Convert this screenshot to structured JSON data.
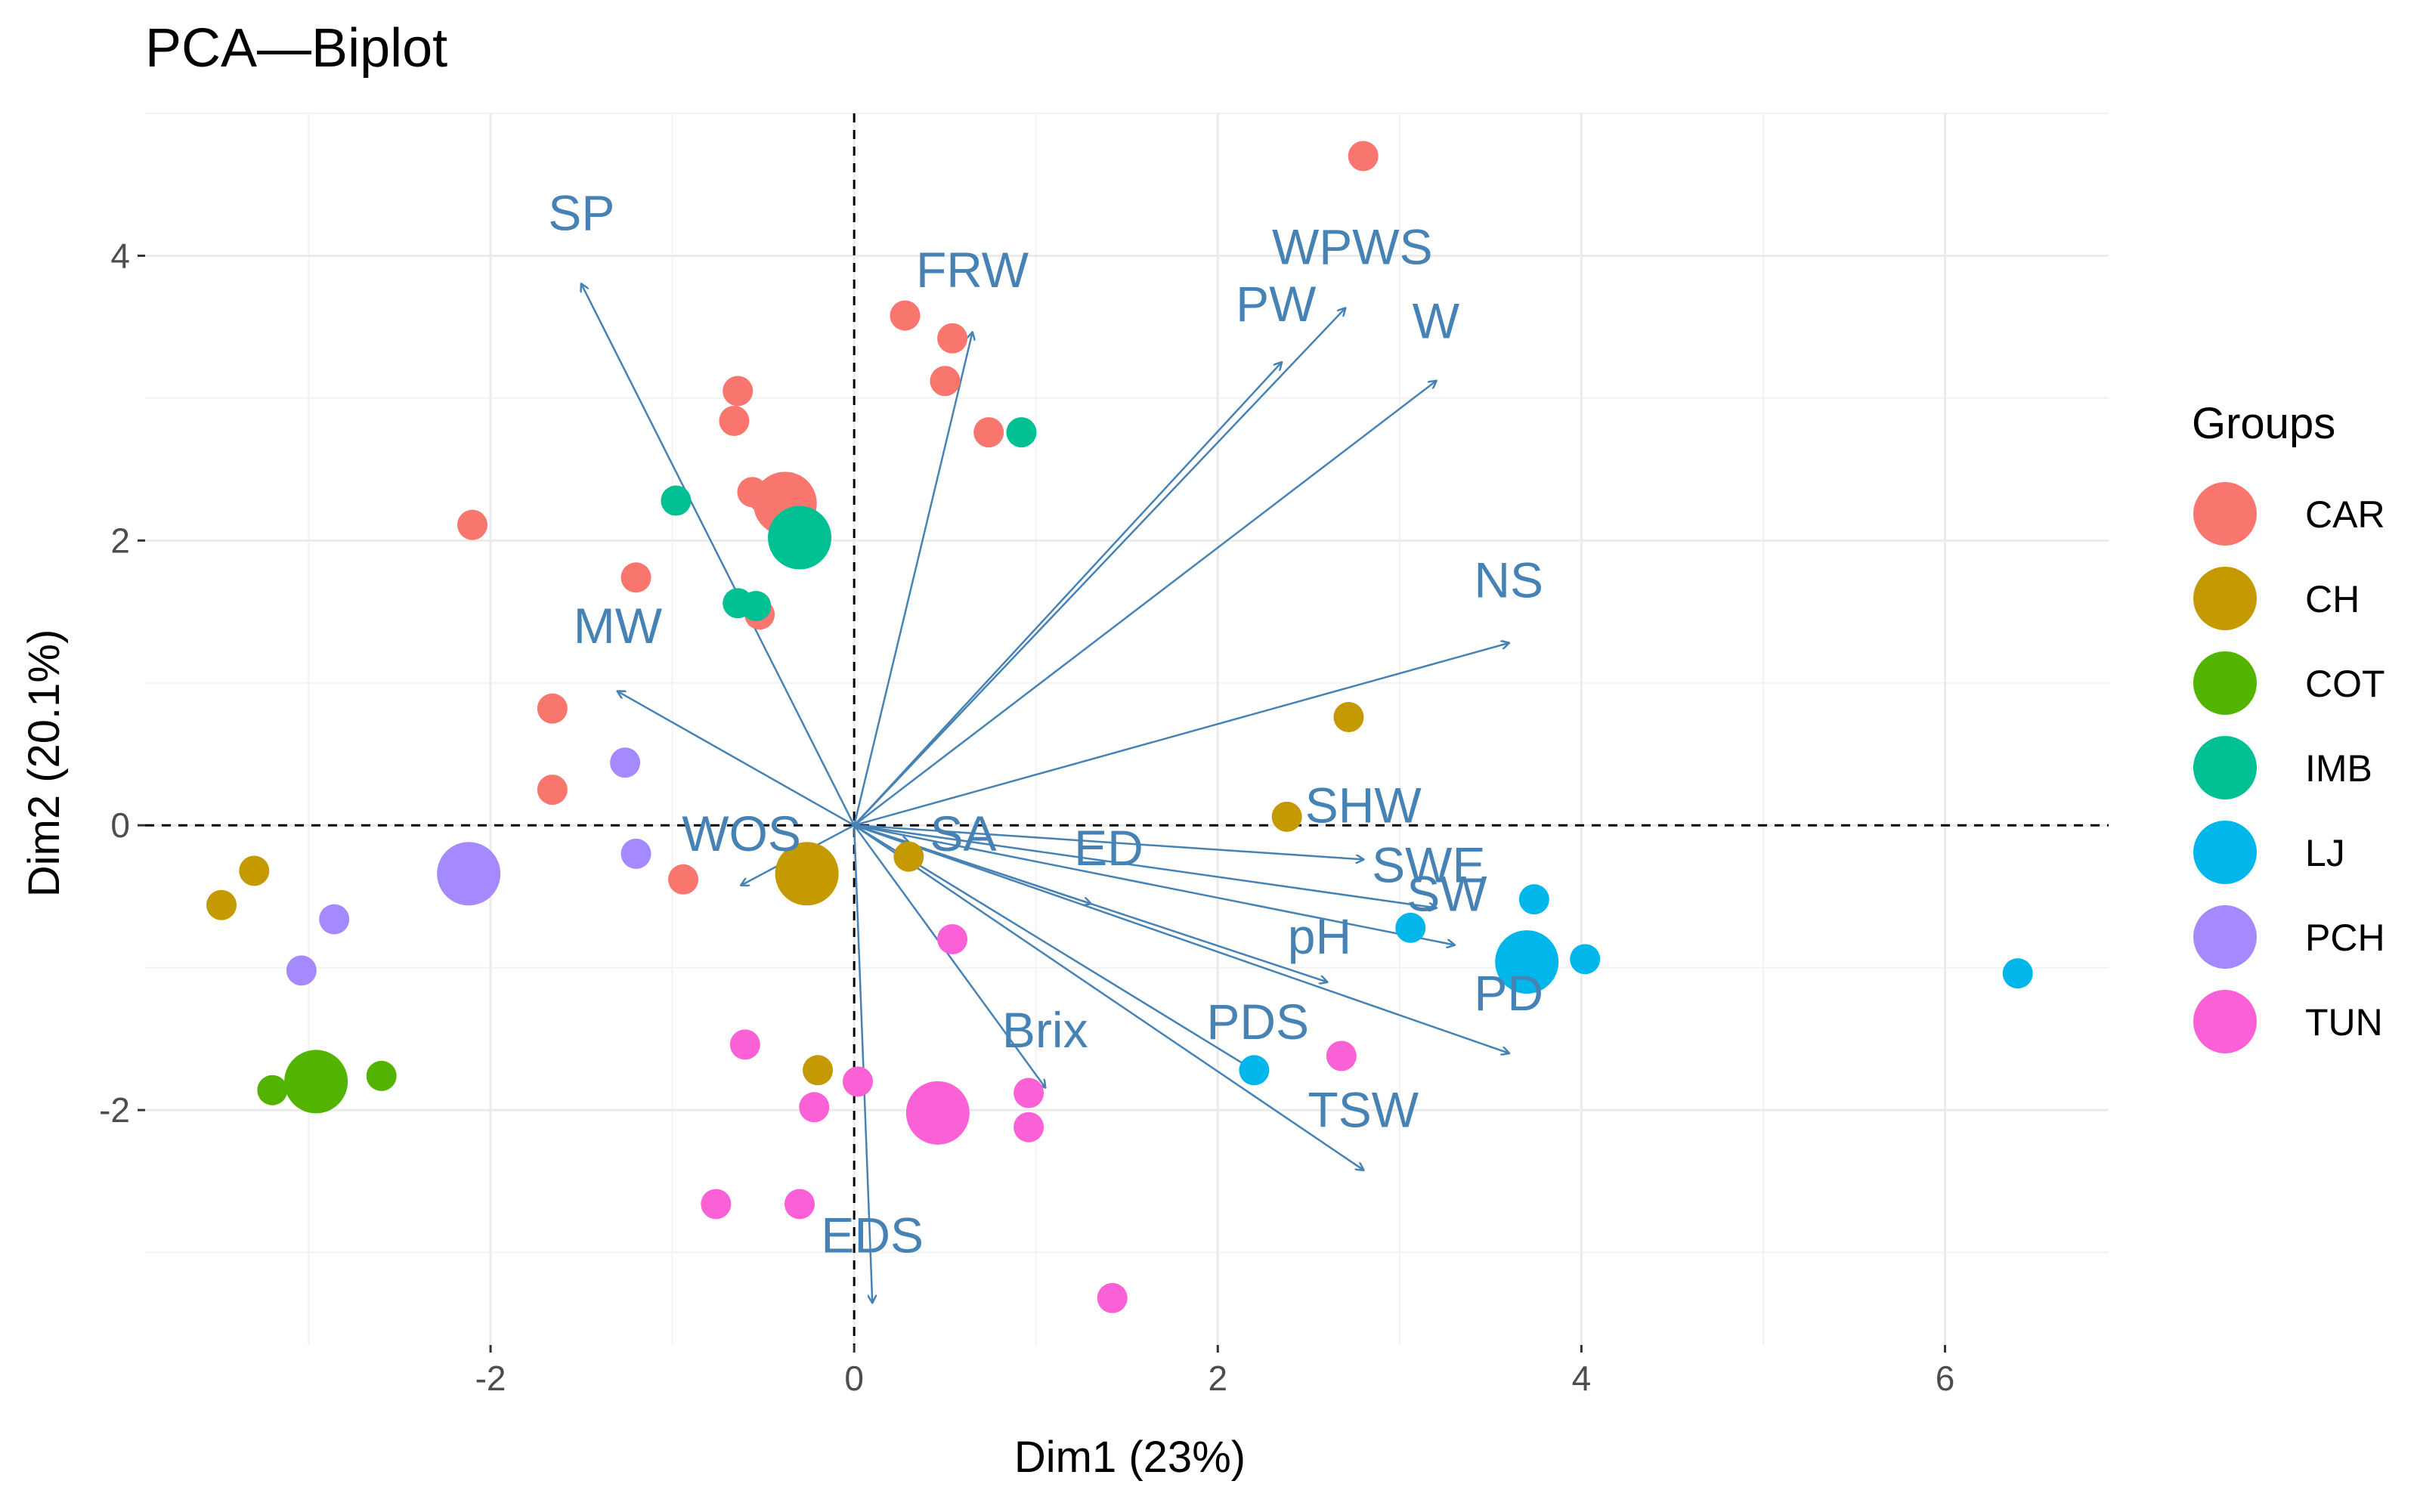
{
  "chart_data": {
    "type": "scatter",
    "title": "PCA—Biplot",
    "xlabel": "Dim1 (23%)",
    "ylabel": "Dim2 (20.1%)",
    "xlim": [
      -3.9,
      6.9
    ],
    "ylim": [
      -3.65,
      5.0
    ],
    "x_ticks": [
      -2,
      0,
      2,
      4,
      6
    ],
    "y_ticks": [
      -2,
      0,
      2,
      4
    ],
    "x_tick_labels": [
      "-2",
      "0",
      "2",
      "4",
      "6"
    ],
    "y_tick_labels": [
      "-2",
      "0",
      "2",
      "4"
    ],
    "grid": true,
    "legend": {
      "title": "Groups",
      "position": "right",
      "items": [
        {
          "name": "CAR",
          "color": "#F8766D"
        },
        {
          "name": "CH",
          "color": "#C49A00"
        },
        {
          "name": "COT",
          "color": "#53B400"
        },
        {
          "name": "IMB",
          "color": "#00C094"
        },
        {
          "name": "LJ",
          "color": "#00B6EB"
        },
        {
          "name": "PCH",
          "color": "#A58AFF"
        },
        {
          "name": "TUN",
          "color": "#FB61D7"
        }
      ]
    },
    "arrow_color": "#4682B4",
    "series": [
      {
        "name": "CAR",
        "color": "#F8766D",
        "points": [
          [
            2.8,
            4.7
          ],
          [
            0.28,
            3.58
          ],
          [
            0.54,
            3.42
          ],
          [
            0.5,
            3.12
          ],
          [
            0.74,
            2.76
          ],
          [
            -0.64,
            3.05
          ],
          [
            -0.66,
            2.84
          ],
          [
            -0.56,
            2.34
          ],
          [
            -0.5,
            2.3
          ],
          [
            -2.1,
            2.11
          ],
          [
            -1.2,
            1.74
          ],
          [
            -0.52,
            1.48
          ],
          [
            -1.66,
            0.82
          ],
          [
            -1.66,
            0.25
          ],
          [
            -0.94,
            -0.38
          ]
        ],
        "centroid": [
          -0.38,
          2.26
        ]
      },
      {
        "name": "CH",
        "color": "#C49A00",
        "points": [
          [
            2.72,
            0.76
          ],
          [
            2.38,
            0.06
          ],
          [
            0.3,
            -0.22
          ],
          [
            -3.3,
            -0.32
          ],
          [
            -3.48,
            -0.56
          ],
          [
            -0.2,
            -1.72
          ]
        ],
        "centroid": [
          -0.26,
          -0.34
        ]
      },
      {
        "name": "COT",
        "color": "#53B400",
        "points": [
          [
            -3.2,
            -1.86
          ],
          [
            -2.6,
            -1.76
          ]
        ],
        "centroid": [
          -2.96,
          -1.8
        ]
      },
      {
        "name": "IMB",
        "color": "#00C094",
        "points": [
          [
            -0.98,
            2.28
          ],
          [
            0.92,
            2.76
          ],
          [
            -0.64,
            1.56
          ],
          [
            -0.54,
            1.54
          ]
        ],
        "centroid": [
          -0.3,
          2.02
        ]
      },
      {
        "name": "LJ",
        "color": "#00B6EB",
        "points": [
          [
            3.74,
            -0.52
          ],
          [
            3.06,
            -0.72
          ],
          [
            4.02,
            -0.94
          ],
          [
            2.2,
            -1.72
          ],
          [
            6.4,
            -1.04
          ]
        ],
        "centroid": [
          3.7,
          -0.96
        ]
      },
      {
        "name": "PCH",
        "color": "#A58AFF",
        "points": [
          [
            -1.26,
            0.44
          ],
          [
            -1.2,
            -0.2
          ],
          [
            -2.86,
            -0.66
          ],
          [
            -3.04,
            -1.02
          ]
        ],
        "centroid": [
          -2.12,
          -0.34
        ]
      },
      {
        "name": "TUN",
        "color": "#FB61D7",
        "points": [
          [
            0.54,
            -0.8
          ],
          [
            -0.6,
            -1.54
          ],
          [
            0.96,
            -1.88
          ],
          [
            0.96,
            -2.12
          ],
          [
            -0.22,
            -1.98
          ],
          [
            0.02,
            -1.8
          ],
          [
            2.68,
            -1.62
          ],
          [
            -0.76,
            -2.66
          ],
          [
            -0.3,
            -2.66
          ],
          [
            1.42,
            -3.32
          ]
        ],
        "centroid": [
          0.46,
          -2.02
        ]
      }
    ],
    "variables": [
      {
        "name": "SP",
        "x": -1.5,
        "y": 3.8,
        "label_x": -1.5,
        "label_y": 4.18
      },
      {
        "name": "FRW",
        "x": 0.65,
        "y": 3.46,
        "label_x": 0.65,
        "label_y": 3.78
      },
      {
        "name": "WPWS",
        "x": 2.7,
        "y": 3.63,
        "label_x": 2.74,
        "label_y": 3.94
      },
      {
        "name": "PW",
        "x": 2.35,
        "y": 3.25,
        "label_x": 2.32,
        "label_y": 3.54
      },
      {
        "name": "W",
        "x": 3.2,
        "y": 3.12,
        "label_x": 3.2,
        "label_y": 3.42
      },
      {
        "name": "NS",
        "x": 3.6,
        "y": 1.28,
        "label_x": 3.6,
        "label_y": 1.6
      },
      {
        "name": "MW",
        "x": -1.3,
        "y": 0.94,
        "label_x": -1.3,
        "label_y": 1.28
      },
      {
        "name": "SHW",
        "x": 2.8,
        "y": -0.24,
        "label_x": 2.8,
        "label_y": 0.02
      },
      {
        "name": "SWE",
        "x": 3.2,
        "y": -0.58,
        "label_x": 3.16,
        "label_y": -0.4
      },
      {
        "name": "SW",
        "x": 3.3,
        "y": -0.84,
        "label_x": 3.26,
        "label_y": -0.6
      },
      {
        "name": "pH",
        "x": 2.6,
        "y": -1.1,
        "label_x": 2.56,
        "label_y": -0.9
      },
      {
        "name": "PD",
        "x": 3.6,
        "y": -1.6,
        "label_x": 3.6,
        "label_y": -1.3
      },
      {
        "name": "PDS",
        "x": 2.25,
        "y": -1.76,
        "label_x": 2.22,
        "label_y": -1.5
      },
      {
        "name": "TSW",
        "x": 2.8,
        "y": -2.42,
        "label_x": 2.8,
        "label_y": -2.12
      },
      {
        "name": "Brix",
        "x": 1.05,
        "y": -1.84,
        "label_x": 1.05,
        "label_y": -1.56
      },
      {
        "name": "EDS",
        "x": 0.1,
        "y": -3.35,
        "label_x": 0.1,
        "label_y": -3.0
      },
      {
        "name": "WOS",
        "x": -0.62,
        "y": -0.42,
        "label_x": -0.62,
        "label_y": -0.18
      },
      {
        "name": "SA",
        "x": 0.3,
        "y": -0.12,
        "label_x": 0.6,
        "label_y": -0.18
      },
      {
        "name": "ED",
        "x": 1.3,
        "y": -0.55,
        "label_x": 1.4,
        "label_y": -0.28
      }
    ]
  }
}
